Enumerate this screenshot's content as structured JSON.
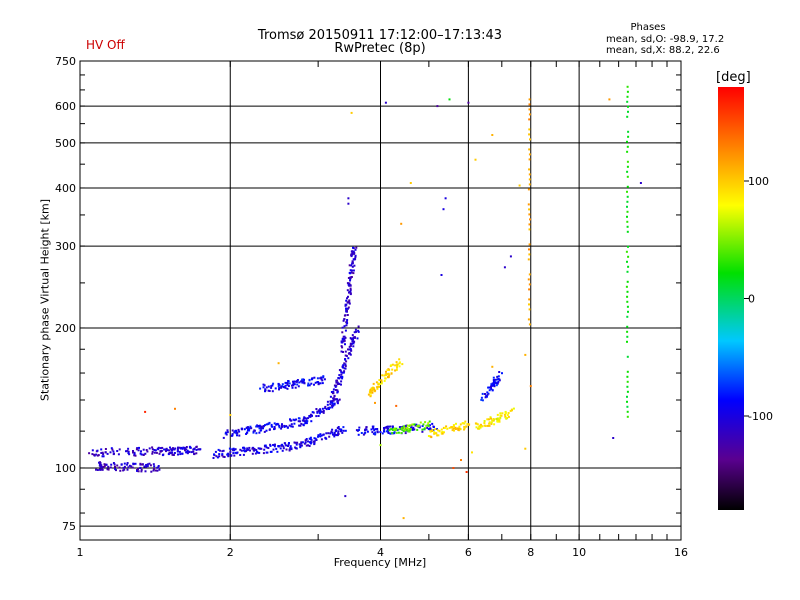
{
  "header": {
    "status": "HV Off",
    "title": "Tromsø 20150911 17:12:00–17:13:43",
    "subtitle": "RwPretec (8p)"
  },
  "phases": {
    "heading": "Phases",
    "o_line": "mean, sd,O: -98.9, 17.2",
    "x_line": "mean, sd,X:  88.2, 22.6"
  },
  "colorbar": {
    "unit": "[deg]",
    "range": [
      -180,
      180
    ],
    "ticks": [
      {
        "value": 100,
        "label": "100"
      },
      {
        "value": 0,
        "label": "0"
      },
      {
        "value": -100,
        "label": "-100"
      }
    ]
  },
  "chart_data": {
    "type": "scatter",
    "xlabel": "Frequency [MHz]",
    "ylabel": "Stationary phase Virtual Height [km]",
    "xscale": "log",
    "yscale": "log",
    "xlim": [
      1,
      16
    ],
    "ylim": [
      70,
      750
    ],
    "xticks": [
      {
        "value": 1,
        "label": "1"
      },
      {
        "value": 2,
        "label": "2"
      },
      {
        "value": 4,
        "label": "4"
      },
      {
        "value": 6,
        "label": "6"
      },
      {
        "value": 8,
        "label": "8"
      },
      {
        "value": 10,
        "label": "10"
      },
      {
        "value": 16,
        "label": "16"
      }
    ],
    "yticks": [
      {
        "value": 75,
        "label": "75"
      },
      {
        "value": 100,
        "label": "100"
      },
      {
        "value": 200,
        "label": "200"
      },
      {
        "value": 300,
        "label": "300"
      },
      {
        "value": 400,
        "label": "400"
      },
      {
        "value": 500,
        "label": "500"
      },
      {
        "value": 600,
        "label": "600"
      },
      {
        "value": 750,
        "label": "750"
      }
    ],
    "grid": true,
    "color_variable": "phase [deg]",
    "traces": [
      {
        "f0": 1.05,
        "f1": 1.75,
        "h0": 108,
        "h1": 109,
        "phase": -108
      },
      {
        "f0": 1.08,
        "f1": 1.45,
        "h0": 101,
        "h1": 100,
        "phase": -112
      },
      {
        "f0": 1.85,
        "f1": 2.8,
        "h0": 107,
        "h1": 112,
        "phase": -102
      },
      {
        "f0": 2.8,
        "f1": 3.4,
        "h0": 112,
        "h1": 122,
        "phase": -100
      },
      {
        "f0": 1.95,
        "f1": 2.8,
        "h0": 118,
        "h1": 126,
        "phase": -95
      },
      {
        "f0": 2.8,
        "f1": 3.3,
        "h0": 126,
        "h1": 140,
        "phase": -100
      },
      {
        "f0": 2.3,
        "f1": 3.1,
        "h0": 148,
        "h1": 155,
        "phase": -90
      },
      {
        "f0": 3.2,
        "f1": 3.6,
        "h0": 140,
        "h1": 200,
        "phase": -105
      },
      {
        "f0": 3.35,
        "f1": 3.55,
        "h0": 180,
        "h1": 300,
        "phase": -110
      },
      {
        "f0": 3.6,
        "f1": 5.2,
        "h0": 120,
        "h1": 122,
        "phase": -95
      },
      {
        "f0": 3.8,
        "f1": 4.4,
        "h0": 145,
        "h1": 170,
        "phase": 95
      },
      {
        "f0": 6.2,
        "f1": 7.4,
        "h0": 122,
        "h1": 132,
        "phase": 85
      },
      {
        "f0": 6.4,
        "f1": 7.0,
        "h0": 140,
        "h1": 160,
        "phase": -90
      },
      {
        "f0": 4.2,
        "f1": 5.0,
        "h0": 120,
        "h1": 124,
        "phase": 45
      },
      {
        "f0": 5.0,
        "f1": 6.0,
        "h0": 118,
        "h1": 124,
        "phase": 95
      }
    ],
    "columns": [
      {
        "f": 12.5,
        "h0": 125,
        "h1": 660,
        "phase": 20
      },
      {
        "f": 7.95,
        "h0": 200,
        "h1": 620,
        "phase": 115
      }
    ],
    "points": [
      {
        "f": 3.45,
        "h": 370,
        "phase": -110
      },
      {
        "f": 3.45,
        "h": 380,
        "phase": -110
      },
      {
        "f": 3.5,
        "h": 580,
        "phase": 100
      },
      {
        "f": 4.1,
        "h": 610,
        "phase": -110
      },
      {
        "f": 5.5,
        "h": 620,
        "phase": 20
      },
      {
        "f": 5.2,
        "h": 600,
        "phase": -130
      },
      {
        "f": 6.0,
        "h": 610,
        "phase": -130
      },
      {
        "f": 5.35,
        "h": 360,
        "phase": -100
      },
      {
        "f": 5.4,
        "h": 380,
        "phase": -100
      },
      {
        "f": 6.2,
        "h": 460,
        "phase": 100
      },
      {
        "f": 6.7,
        "h": 520,
        "phase": 110
      },
      {
        "f": 4.4,
        "h": 335,
        "phase": 120
      },
      {
        "f": 4.6,
        "h": 410,
        "phase": 100
      },
      {
        "f": 5.3,
        "h": 260,
        "phase": -100
      },
      {
        "f": 7.3,
        "h": 285,
        "phase": -110
      },
      {
        "f": 7.1,
        "h": 270,
        "phase": -110
      },
      {
        "f": 7.6,
        "h": 405,
        "phase": 100
      },
      {
        "f": 8.0,
        "h": 150,
        "phase": 130
      },
      {
        "f": 7.8,
        "h": 175,
        "phase": 110
      },
      {
        "f": 11.5,
        "h": 620,
        "phase": 120
      },
      {
        "f": 13.3,
        "h": 410,
        "phase": -110
      },
      {
        "f": 11.7,
        "h": 116,
        "phase": -110
      },
      {
        "f": 1.35,
        "h": 132,
        "phase": 165
      },
      {
        "f": 1.55,
        "h": 134,
        "phase": 130
      },
      {
        "f": 2.5,
        "h": 168,
        "phase": 110
      },
      {
        "f": 3.4,
        "h": 87,
        "phase": -110
      },
      {
        "f": 4.45,
        "h": 78,
        "phase": 110
      },
      {
        "f": 4.0,
        "h": 112,
        "phase": 60
      },
      {
        "f": 5.6,
        "h": 100,
        "phase": 150
      },
      {
        "f": 5.8,
        "h": 104,
        "phase": 130
      },
      {
        "f": 5.95,
        "h": 98,
        "phase": 160
      },
      {
        "f": 6.1,
        "h": 108,
        "phase": 90
      },
      {
        "f": 7.8,
        "h": 110,
        "phase": 100
      },
      {
        "f": 2.0,
        "h": 130,
        "phase": 100
      },
      {
        "f": 3.9,
        "h": 138,
        "phase": 120
      },
      {
        "f": 4.3,
        "h": 136,
        "phase": 140
      },
      {
        "f": 6.7,
        "h": 165,
        "phase": 110
      }
    ]
  }
}
